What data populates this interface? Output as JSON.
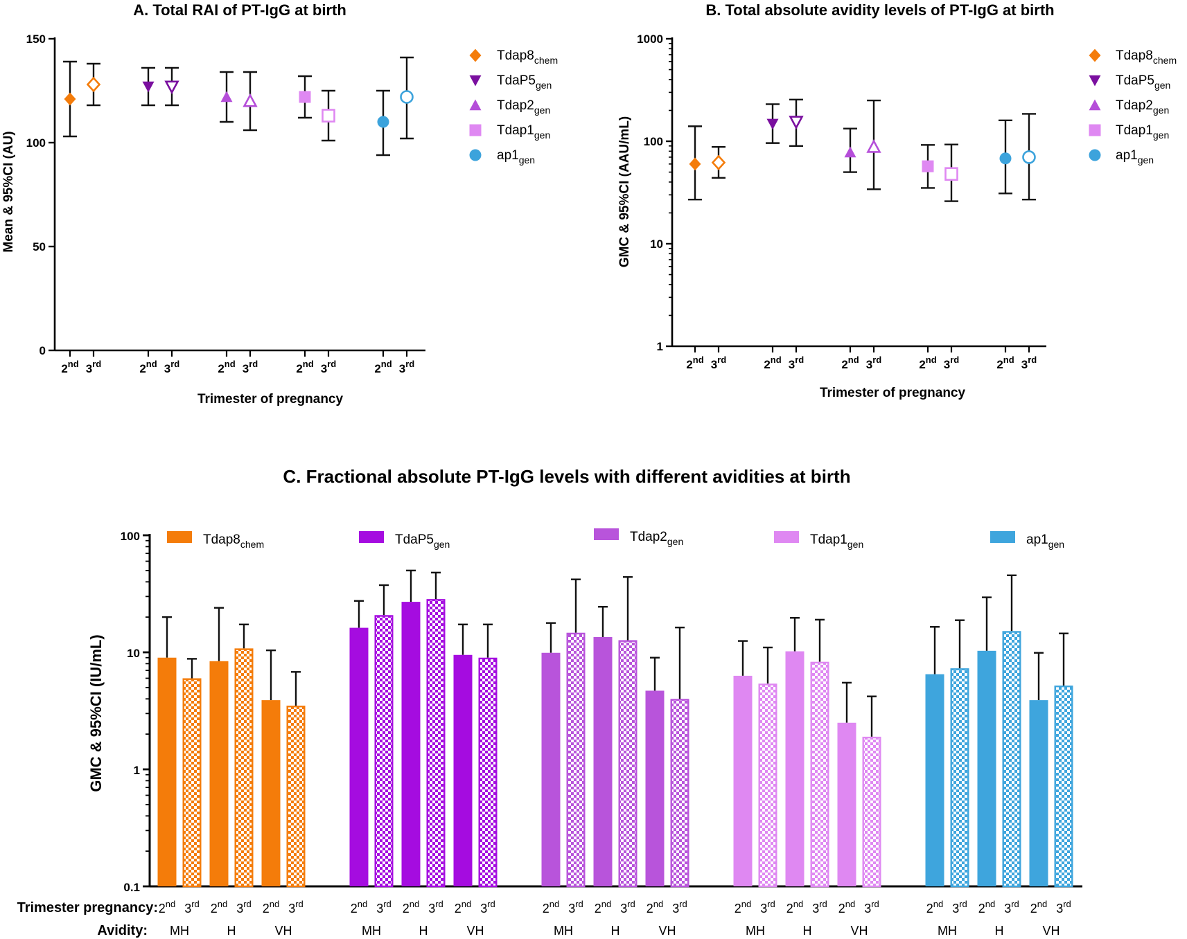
{
  "chart_data": [
    {
      "type": "scatter",
      "id": "A",
      "title": "A. Total RAI of PT-IgG at birth",
      "ylabel": "Mean & 95%CI (AU)",
      "xlabel": "Trimester of pregnancy",
      "yscale": "linear",
      "ylim": [
        0,
        150
      ],
      "yticks": [
        0,
        50,
        100,
        150
      ],
      "ytick_labels": [
        "0",
        "50",
        "100",
        "150"
      ],
      "trimester_labels": [
        [
          "2",
          "nd"
        ],
        [
          "3",
          "rd"
        ]
      ],
      "groups": [
        {
          "name": "Tdap8",
          "sub": "chem",
          "color": "#f47c0a",
          "marker": "diamond",
          "points": [
            {
              "trimester": "2nd",
              "value": 121,
              "lo": 103,
              "hi": 139
            },
            {
              "trimester": "3rd",
              "value": 128,
              "lo": 118,
              "hi": 138
            }
          ]
        },
        {
          "name": "TdaP5",
          "sub": "gen",
          "color": "#7a0f9f",
          "marker": "triangle-down",
          "points": [
            {
              "trimester": "2nd",
              "value": 127,
              "lo": 118,
              "hi": 136
            },
            {
              "trimester": "3rd",
              "value": 127,
              "lo": 118,
              "hi": 136
            }
          ]
        },
        {
          "name": "Tdap2",
          "sub": "gen",
          "color": "#b54ed9",
          "marker": "triangle-up",
          "points": [
            {
              "trimester": "2nd",
              "value": 122,
              "lo": 110,
              "hi": 134
            },
            {
              "trimester": "3rd",
              "value": 120,
              "lo": 106,
              "hi": 134
            }
          ]
        },
        {
          "name": "Tdap1",
          "sub": "gen",
          "color": "#df88f2",
          "marker": "square",
          "points": [
            {
              "trimester": "2nd",
              "value": 122,
              "lo": 112,
              "hi": 132
            },
            {
              "trimester": "3rd",
              "value": 113,
              "lo": 101,
              "hi": 125
            }
          ]
        },
        {
          "name": "ap1",
          "sub": "gen",
          "color": "#3ca3dc",
          "marker": "circle",
          "points": [
            {
              "trimester": "2nd",
              "value": 110,
              "lo": 94,
              "hi": 125
            },
            {
              "trimester": "3rd",
              "value": 122,
              "lo": 102,
              "hi": 141
            }
          ]
        }
      ]
    },
    {
      "type": "scatter",
      "id": "B",
      "title": "B. Total absolute avidity levels of  PT-IgG at birth",
      "ylabel": "GMC & 95%CI (AAU/mL)",
      "xlabel": "Trimester of pregnancy",
      "yscale": "log",
      "ylim": [
        1,
        1000
      ],
      "yticks": [
        1,
        10,
        100,
        1000
      ],
      "ytick_labels": [
        "1",
        "10",
        "100",
        "1000"
      ],
      "trimester_labels": [
        [
          "2",
          "nd"
        ],
        [
          "3",
          "rd"
        ]
      ],
      "groups": [
        {
          "name": "Tdap8",
          "sub": "chem",
          "color": "#f47c0a",
          "marker": "diamond",
          "points": [
            {
              "trimester": "2nd",
              "value": 60,
              "lo": 27,
              "hi": 140
            },
            {
              "trimester": "3rd",
              "value": 62,
              "lo": 44,
              "hi": 88
            }
          ]
        },
        {
          "name": "TdaP5",
          "sub": "gen",
          "color": "#7a0f9f",
          "marker": "triangle-down",
          "points": [
            {
              "trimester": "2nd",
              "value": 148,
              "lo": 96,
              "hi": 230
            },
            {
              "trimester": "3rd",
              "value": 155,
              "lo": 90,
              "hi": 255
            }
          ]
        },
        {
          "name": "Tdap2",
          "sub": "gen",
          "color": "#b54ed9",
          "marker": "triangle-up",
          "points": [
            {
              "trimester": "2nd",
              "value": 78,
              "lo": 50,
              "hi": 133
            },
            {
              "trimester": "3rd",
              "value": 88,
              "lo": 34,
              "hi": 250
            }
          ]
        },
        {
          "name": "Tdap1",
          "sub": "gen",
          "color": "#df88f2",
          "marker": "square",
          "points": [
            {
              "trimester": "2nd",
              "value": 57,
              "lo": 35,
              "hi": 92
            },
            {
              "trimester": "3rd",
              "value": 48,
              "lo": 26,
              "hi": 93
            }
          ]
        },
        {
          "name": "ap1",
          "sub": "gen",
          "color": "#3ca3dc",
          "marker": "circle",
          "points": [
            {
              "trimester": "2nd",
              "value": 68,
              "lo": 31,
              "hi": 160
            },
            {
              "trimester": "3rd",
              "value": 70,
              "lo": 27,
              "hi": 185
            }
          ]
        }
      ]
    },
    {
      "type": "bar",
      "id": "C",
      "title": "C. Fractional absolute PT-IgG levels with different avidities at birth",
      "ylabel": "GMC & 95%CI (IU/mL)",
      "yscale": "log",
      "ylim": [
        0.1,
        100
      ],
      "yticks": [
        0.1,
        1,
        10,
        100
      ],
      "ytick_labels": [
        "0.1",
        "1",
        "10",
        "100"
      ],
      "row_labels": {
        "trimester": "Trimester pregnancy:",
        "avidity": "Avidity:"
      },
      "trimester_labels": [
        [
          "2",
          "nd"
        ],
        [
          "3",
          "rd"
        ]
      ],
      "avidity_labels": [
        "MH",
        "H",
        "VH"
      ],
      "groups": [
        {
          "name": "Tdap8",
          "sub": "chem",
          "color": "#f47c0a",
          "bars": [
            {
              "avidity": "MH",
              "trimester": "2nd",
              "value": 9.0,
              "hi": 20
            },
            {
              "avidity": "MH",
              "trimester": "3rd",
              "value": 6.0,
              "hi": 8.8
            },
            {
              "avidity": "H",
              "trimester": "2nd",
              "value": 8.4,
              "hi": 24
            },
            {
              "avidity": "H",
              "trimester": "3rd",
              "value": 10.8,
              "hi": 17.3
            },
            {
              "avidity": "VH",
              "trimester": "2nd",
              "value": 3.9,
              "hi": 10.4
            },
            {
              "avidity": "VH",
              "trimester": "3rd",
              "value": 3.5,
              "hi": 6.8
            }
          ]
        },
        {
          "name": "TdaP5",
          "sub": "gen",
          "color": "#a50ce0",
          "bars": [
            {
              "avidity": "MH",
              "trimester": "2nd",
              "value": 16.2,
              "hi": 27.5
            },
            {
              "avidity": "MH",
              "trimester": "3rd",
              "value": 20.8,
              "hi": 37.5
            },
            {
              "avidity": "H",
              "trimester": "2nd",
              "value": 27,
              "hi": 50
            },
            {
              "avidity": "H",
              "trimester": "3rd",
              "value": 28.5,
              "hi": 48
            },
            {
              "avidity": "VH",
              "trimester": "2nd",
              "value": 9.5,
              "hi": 17.3
            },
            {
              "avidity": "VH",
              "trimester": "3rd",
              "value": 9.0,
              "hi": 17.3
            }
          ]
        },
        {
          "name": "Tdap2",
          "sub": "gen",
          "color": "#b854db",
          "bars": [
            {
              "avidity": "MH",
              "trimester": "2nd",
              "value": 9.9,
              "hi": 17.8
            },
            {
              "avidity": "MH",
              "trimester": "3rd",
              "value": 14.7,
              "hi": 42
            },
            {
              "avidity": "H",
              "trimester": "2nd",
              "value": 13.5,
              "hi": 24.5
            },
            {
              "avidity": "H",
              "trimester": "3rd",
              "value": 12.7,
              "hi": 44
            },
            {
              "avidity": "VH",
              "trimester": "2nd",
              "value": 4.7,
              "hi": 9.0
            },
            {
              "avidity": "VH",
              "trimester": "3rd",
              "value": 4.0,
              "hi": 16.3
            }
          ]
        },
        {
          "name": "Tdap1",
          "sub": "gen",
          "color": "#df88f2",
          "bars": [
            {
              "avidity": "MH",
              "trimester": "2nd",
              "value": 6.3,
              "hi": 12.5
            },
            {
              "avidity": "MH",
              "trimester": "3rd",
              "value": 5.4,
              "hi": 11.0
            },
            {
              "avidity": "H",
              "trimester": "2nd",
              "value": 10.2,
              "hi": 19.7
            },
            {
              "avidity": "H",
              "trimester": "3rd",
              "value": 8.3,
              "hi": 19.0
            },
            {
              "avidity": "VH",
              "trimester": "2nd",
              "value": 2.5,
              "hi": 5.5
            },
            {
              "avidity": "VH",
              "trimester": "3rd",
              "value": 1.9,
              "hi": 4.2
            }
          ]
        },
        {
          "name": "ap1",
          "sub": "gen",
          "color": "#3ea5dd",
          "bars": [
            {
              "avidity": "MH",
              "trimester": "2nd",
              "value": 6.5,
              "hi": 16.5
            },
            {
              "avidity": "MH",
              "trimester": "3rd",
              "value": 7.3,
              "hi": 18.8
            },
            {
              "avidity": "H",
              "trimester": "2nd",
              "value": 10.3,
              "hi": 29.5
            },
            {
              "avidity": "H",
              "trimester": "3rd",
              "value": 15.2,
              "hi": 45.5
            },
            {
              "avidity": "VH",
              "trimester": "2nd",
              "value": 3.9,
              "hi": 9.9
            },
            {
              "avidity": "VH",
              "trimester": "3rd",
              "value": 5.2,
              "hi": 14.5
            }
          ]
        }
      ]
    }
  ]
}
